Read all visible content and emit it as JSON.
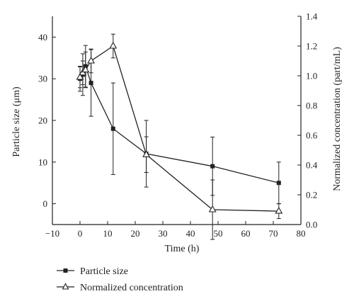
{
  "chart_data": {
    "type": "line",
    "xlabel": "Time (h)",
    "ylabel_left": "Particle size (μm)",
    "ylabel_right": "Normalized concentration (part/mL)",
    "xlim": [
      -10,
      80
    ],
    "ylim_left": [
      -5,
      45
    ],
    "ylim_right": [
      0,
      1.4
    ],
    "x_ticks": [
      "−10",
      "0",
      "10",
      "20",
      "30",
      "40",
      "50",
      "60",
      "70",
      "80"
    ],
    "y_left_ticks": [
      "0",
      "10",
      "20",
      "30",
      "40"
    ],
    "y_right_ticks": [
      "0.0",
      "0.2",
      "0.4",
      "0.6",
      "0.8",
      "1.0",
      "1.2",
      "1.4"
    ],
    "legend_position": "bottom-left",
    "series": [
      {
        "name": "Particle size",
        "axis": "left",
        "marker": "filled-square",
        "x": [
          0,
          1,
          2,
          4,
          12,
          24,
          48,
          72
        ],
        "values": [
          30,
          31,
          33,
          29,
          18,
          12,
          9,
          5
        ],
        "error": [
          3,
          5,
          5,
          8,
          11,
          8,
          7,
          5
        ]
      },
      {
        "name": "Normalized concentration",
        "axis": "right",
        "marker": "open-triangle",
        "x": [
          0,
          1,
          2,
          4,
          12,
          24,
          48,
          72
        ],
        "values": [
          0.99,
          1.02,
          1.04,
          1.1,
          1.2,
          0.47,
          0.1,
          0.09
        ],
        "error": [
          0.07,
          0.08,
          0.12,
          0.08,
          0.08,
          0.12,
          0.2,
          0.05
        ]
      }
    ]
  },
  "legend": {
    "series1_label": "Particle size",
    "series2_label": "Normalized concentration"
  },
  "axes": {
    "xlabel": "Time (h)",
    "ylabel_left": "Particle size (μm)",
    "ylabel_right": "Normalized concentration (part/mL)"
  }
}
